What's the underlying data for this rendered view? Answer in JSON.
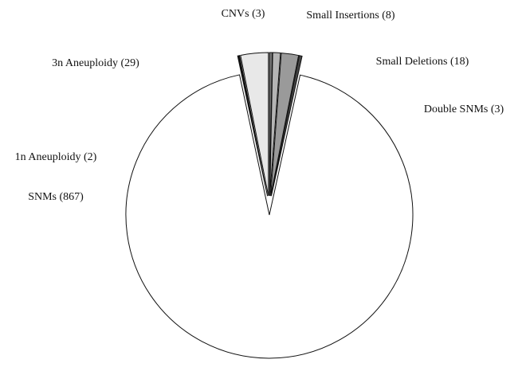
{
  "chart_data": {
    "type": "pie",
    "values": [
      3,
      8,
      18,
      3,
      867,
      2,
      29
    ],
    "value_labels": [
      "CNVs (3)",
      "Small Insertions (8)",
      "Small Deletions (18)",
      "Double SNMs (3)",
      "SNMs (867)",
      "1n Aneuploidy (2)",
      "3n Aneuploidy (29)"
    ],
    "colors": [
      "#777777",
      "#b4b4b4",
      "#9a9a9a",
      "#444444",
      "#ffffff",
      "#111111",
      "#e8e8e8"
    ]
  }
}
